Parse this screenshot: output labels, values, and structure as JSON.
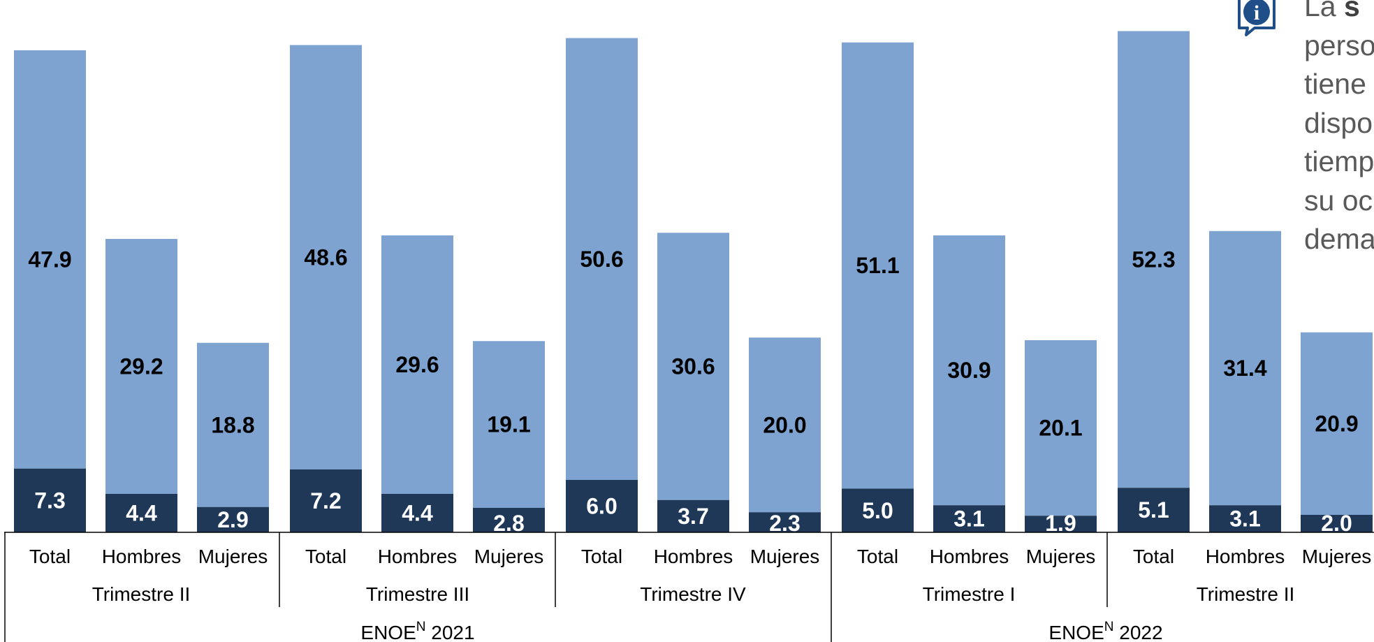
{
  "colors": {
    "light_bar": "#7ea3d0",
    "dark_bar": "#1f3858",
    "light_label": "#000000",
    "dark_label": "#ffffff",
    "note_text": "#595959",
    "icon": "#1f4e89"
  },
  "side_note": {
    "icon": "info-speech-bubble-icon",
    "lead": "La ",
    "bold": "s",
    "text_lines": "perso\ntiene\ndispo\ntiemp\nsu oc\ndema"
  },
  "chart_data": {
    "type": "bar",
    "stacked": true,
    "categories": [
      "Total",
      "Hombres",
      "Mujeres",
      "Total",
      "Hombres",
      "Mujeres",
      "Total",
      "Hombres",
      "Mujeres",
      "Total",
      "Hombres",
      "Mujeres",
      "Total",
      "Hombres",
      "Mujeres"
    ],
    "series": [
      {
        "key": "dark",
        "values": [
          7.3,
          4.4,
          2.9,
          7.2,
          4.4,
          2.8,
          6.0,
          3.7,
          2.3,
          5.0,
          3.1,
          1.9,
          5.1,
          3.1,
          2.0
        ]
      },
      {
        "key": "light",
        "values": [
          47.9,
          29.2,
          18.8,
          48.6,
          29.6,
          19.1,
          50.6,
          30.6,
          20.0,
          51.1,
          30.9,
          20.1,
          52.3,
          31.4,
          20.9
        ]
      }
    ],
    "value_labels": {
      "dark": [
        "7.3",
        "4.4",
        "2.9",
        "7.2",
        "4.4",
        "2.8",
        "6.0",
        "3.7",
        "2.3",
        "5.0",
        "3.1",
        "1.9",
        "5.1",
        "3.1",
        "2.0"
      ],
      "light": [
        "47.9",
        "29.2",
        "18.8",
        "48.6",
        "29.6",
        "19.1",
        "50.6",
        "30.6",
        "20.0",
        "51.1",
        "30.9",
        "20.1",
        "52.3",
        "31.4",
        "20.9"
      ]
    },
    "quarters": [
      "Trimestre II",
      "Trimestre III",
      "Trimestre IV",
      "Trimestre I",
      "Trimestre II"
    ],
    "years": [
      {
        "base": "ENOE",
        "sup": "N",
        "year": " 2021"
      },
      {
        "base": "ENOE",
        "sup": "N",
        "year": " 2022"
      }
    ],
    "title": "",
    "xlabel": "",
    "ylabel": "",
    "grid": false,
    "legend": "none"
  }
}
